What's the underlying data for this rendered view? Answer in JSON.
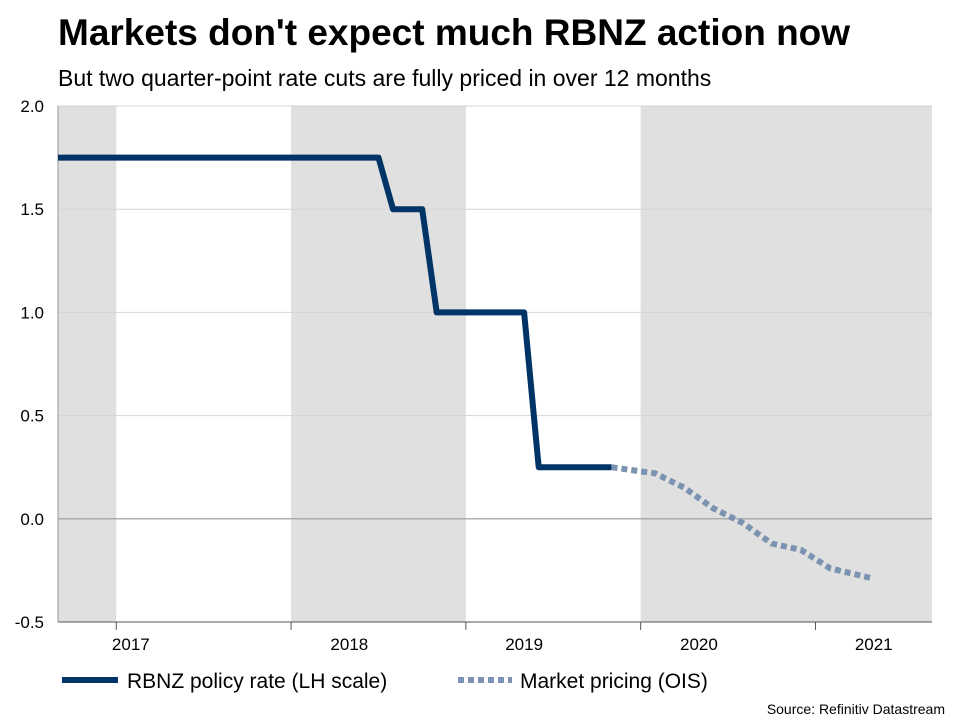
{
  "chart_data": {
    "type": "line",
    "title": "Markets don't expect much RBNZ action now",
    "subtitle": "But two quarter-point rate cuts are fully priced in over 12 months",
    "source": "Source: Refinitiv Datastream",
    "ylim": [
      -0.5,
      2.0
    ],
    "y_ticks": [
      2.0,
      1.5,
      1.0,
      0.5,
      0.0,
      -0.5
    ],
    "y_tick_labels": [
      "2.0",
      "1.5",
      "1.0",
      "0.5",
      "0.0",
      "-0.5"
    ],
    "grid": true,
    "x_axis": {
      "range": [
        "2016-11",
        "2021-11"
      ],
      "year_labels": [
        "2017",
        "2018",
        "2019",
        "2020",
        "2021"
      ],
      "year_label_dates": [
        "2017-04",
        "2018-07",
        "2019-07",
        "2020-07",
        "2021-07"
      ],
      "year_boundaries": [
        "2017-03",
        "2018-03",
        "2019-03",
        "2020-03",
        "2021-03"
      ],
      "shaded_spans": [
        [
          "2016-11",
          "2017-03"
        ],
        [
          "2018-03",
          "2019-03"
        ],
        [
          "2020-03",
          "2021-11"
        ]
      ]
    },
    "legend": {
      "placement": "bottom"
    },
    "series": [
      {
        "name": "RBNZ policy rate (LH scale)",
        "color": "#003366",
        "style": "solid",
        "points": [
          [
            "2016-11",
            1.75
          ],
          [
            "2018-09",
            1.75
          ],
          [
            "2018-10",
            1.5
          ],
          [
            "2018-12",
            1.5
          ],
          [
            "2019-01",
            1.0
          ],
          [
            "2019-07",
            1.0
          ],
          [
            "2019-08",
            0.25
          ],
          [
            "2020-01",
            0.25
          ]
        ]
      },
      {
        "name": "Market pricing (OIS)",
        "color": "#7B93B0",
        "style": "dotted",
        "points": [
          [
            "2020-01",
            0.25
          ],
          [
            "2020-04",
            0.22
          ],
          [
            "2020-06",
            0.15
          ],
          [
            "2020-08",
            0.05
          ],
          [
            "2020-10",
            -0.02
          ],
          [
            "2020-12",
            -0.12
          ],
          [
            "2021-02",
            -0.15
          ],
          [
            "2021-04",
            -0.24
          ],
          [
            "2021-07",
            -0.29
          ]
        ]
      }
    ]
  }
}
